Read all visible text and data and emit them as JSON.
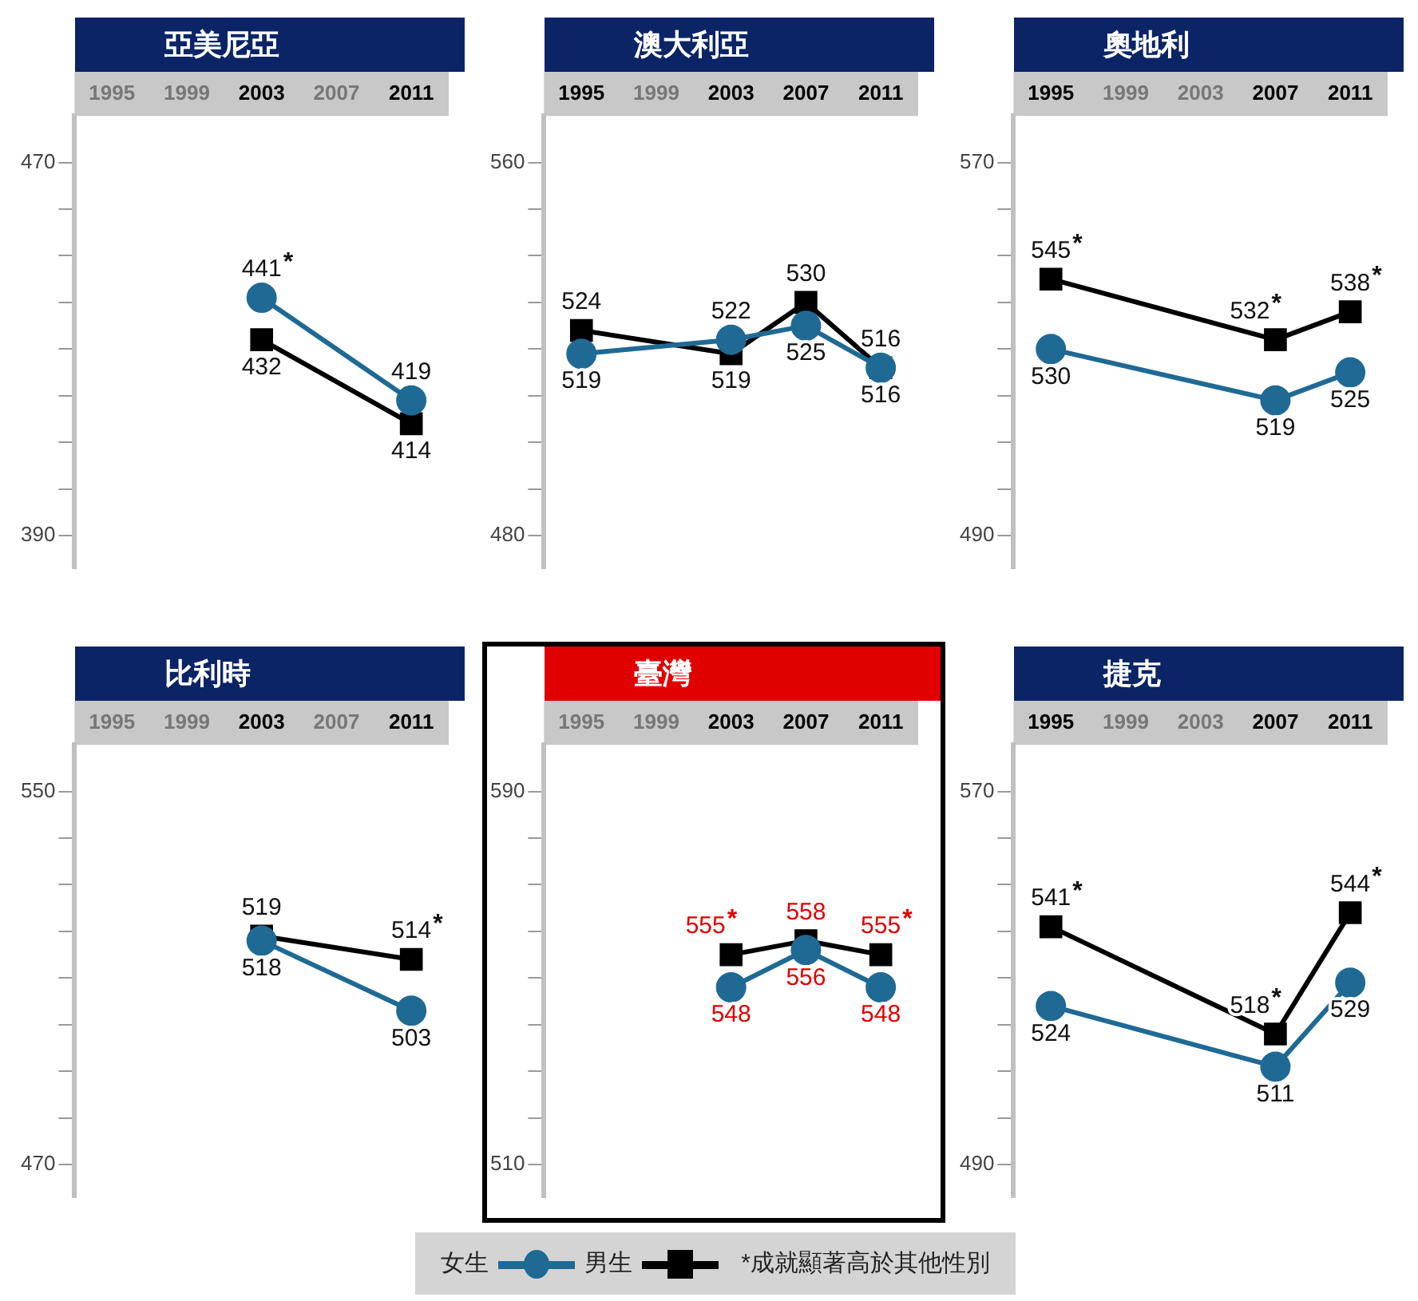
{
  "chart_data": [
    {
      "type": "line",
      "title": "亞美尼亞",
      "categories": [
        "1995",
        "1999",
        "2003",
        "2007",
        "2011"
      ],
      "ylim": [
        383,
        480
      ],
      "yticks": [
        390,
        {
          "value": 400,
          "label": null
        },
        {
          "value": 410,
          "label": null
        },
        {
          "value": 420,
          "label": null
        },
        {
          "value": 430,
          "label": null
        },
        {
          "value": 440,
          "label": null
        },
        {
          "value": 450,
          "label": null
        },
        {
          "value": 460,
          "label": null
        },
        470
      ],
      "grid": false,
      "series": [
        {
          "color": "#1f6a94",
          "marker": "circle",
          "values": [
            null,
            null,
            441,
            null,
            419
          ],
          "value_labels": [
            null,
            null,
            "441*",
            null,
            "419"
          ]
        },
        {
          "color": "#000000",
          "marker": "square",
          "values": [
            null,
            null,
            432,
            null,
            414
          ],
          "value_labels": [
            null,
            null,
            "432",
            null,
            "414"
          ]
        }
      ]
    },
    {
      "type": "line",
      "title": "澳大利亞",
      "categories": [
        "1995",
        "1999",
        "2003",
        "2007",
        "2011"
      ],
      "ylim": [
        473,
        570
      ],
      "yticks": [
        480,
        {
          "value": 490,
          "label": null
        },
        {
          "value": 500,
          "label": null
        },
        {
          "value": 510,
          "label": null
        },
        {
          "value": 520,
          "label": null
        },
        {
          "value": 530,
          "label": null
        },
        {
          "value": 540,
          "label": null
        },
        {
          "value": 550,
          "label": null
        },
        560
      ],
      "grid": false,
      "series": [
        {
          "color": "#1f6a94",
          "marker": "circle",
          "values": [
            519,
            null,
            522,
            525,
            516
          ],
          "value_labels": [
            "519",
            null,
            "522",
            "525",
            "516"
          ]
        },
        {
          "color": "#000000",
          "marker": "square",
          "values": [
            524,
            null,
            519,
            530,
            516
          ],
          "value_labels": [
            "524",
            null,
            "519",
            "530",
            "516"
          ]
        }
      ]
    },
    {
      "type": "line",
      "title": "奧地利",
      "categories": [
        "1995",
        "1999",
        "2003",
        "2007",
        "2011"
      ],
      "ylim": [
        483,
        580
      ],
      "yticks": [
        490,
        {
          "value": 500,
          "label": null
        },
        {
          "value": 510,
          "label": null
        },
        {
          "value": 520,
          "label": null
        },
        {
          "value": 530,
          "label": null
        },
        {
          "value": 540,
          "label": null
        },
        {
          "value": 550,
          "label": null
        },
        {
          "value": 560,
          "label": null
        },
        570
      ],
      "grid": false,
      "series": [
        {
          "color": "#1f6a94",
          "marker": "circle",
          "values": [
            530,
            null,
            null,
            519,
            525
          ],
          "value_labels": [
            "530",
            null,
            null,
            "519",
            "525"
          ]
        },
        {
          "color": "#000000",
          "marker": "square",
          "values": [
            545,
            null,
            null,
            532,
            538
          ],
          "value_labels": [
            "545*",
            null,
            null,
            "532*",
            "538*"
          ]
        }
      ]
    },
    {
      "type": "line",
      "title": "比利時",
      "categories": [
        "1995",
        "1999",
        "2003",
        "2007",
        "2011"
      ],
      "ylim": [
        463,
        560
      ],
      "yticks": [
        470,
        {
          "value": 480,
          "label": null
        },
        {
          "value": 490,
          "label": null
        },
        {
          "value": 500,
          "label": null
        },
        {
          "value": 510,
          "label": null
        },
        {
          "value": 520,
          "label": null
        },
        {
          "value": 530,
          "label": null
        },
        {
          "value": 540,
          "label": null
        },
        550
      ],
      "grid": false,
      "series": [
        {
          "color": "#1f6a94",
          "marker": "circle",
          "values": [
            null,
            null,
            518,
            null,
            503
          ],
          "value_labels": [
            null,
            null,
            "518",
            null,
            "503"
          ]
        },
        {
          "color": "#000000",
          "marker": "square",
          "values": [
            null,
            null,
            519,
            null,
            514
          ],
          "value_labels": [
            null,
            null,
            "519",
            null,
            "514*"
          ]
        }
      ]
    },
    {
      "type": "line",
      "title": "臺灣",
      "categories": [
        "1995",
        "1999",
        "2003",
        "2007",
        "2011"
      ],
      "ylim": [
        503,
        600
      ],
      "yticks": [
        510,
        {
          "value": 520,
          "label": null
        },
        {
          "value": 530,
          "label": null
        },
        {
          "value": 540,
          "label": null
        },
        {
          "value": 550,
          "label": null
        },
        {
          "value": 560,
          "label": null
        },
        {
          "value": 570,
          "label": null
        },
        {
          "value": 580,
          "label": null
        },
        590
      ],
      "grid": false,
      "series": [
        {
          "color": "#1f6a94",
          "marker": "circle",
          "values": [
            null,
            null,
            548,
            556,
            548
          ],
          "value_labels": [
            null,
            null,
            "548",
            "556",
            "548"
          ]
        },
        {
          "color": "#000000",
          "marker": "square",
          "values": [
            null,
            null,
            555,
            558,
            555
          ],
          "value_labels": [
            null,
            null,
            "555*",
            "558",
            "555*"
          ]
        }
      ]
    },
    {
      "type": "line",
      "title": "捷克",
      "categories": [
        "1995",
        "1999",
        "2003",
        "2007",
        "2011"
      ],
      "ylim": [
        483,
        580
      ],
      "yticks": [
        490,
        {
          "value": 500,
          "label": null
        },
        {
          "value": 510,
          "label": null
        },
        {
          "value": 520,
          "label": null
        },
        {
          "value": 530,
          "label": null
        },
        {
          "value": 540,
          "label": null
        },
        {
          "value": 550,
          "label": null
        },
        {
          "value": 560,
          "label": null
        },
        570
      ],
      "grid": false,
      "legend": "bottom",
      "annotations": [
        "*成就顯著高於其他性別"
      ],
      "series": [
        {
          "name": "女生",
          "color": "#1f6a94",
          "marker": "circle",
          "values": [
            524,
            null,
            null,
            511,
            529
          ],
          "value_labels": [
            "524",
            null,
            null,
            "511",
            "529"
          ]
        },
        {
          "name": "男生",
          "color": "#000000",
          "marker": "square",
          "values": [
            541,
            null,
            null,
            518,
            544
          ],
          "value_labels": [
            "541*",
            null,
            null,
            "518*",
            "544*"
          ]
        }
      ]
    }
  ]
}
